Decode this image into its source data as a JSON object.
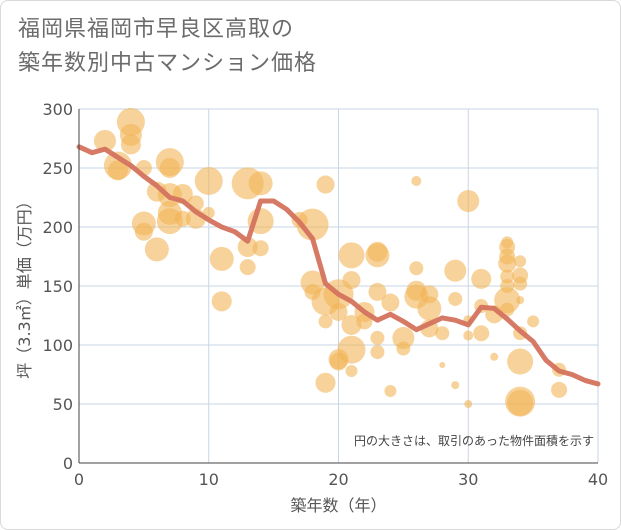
{
  "chart_data": {
    "type": "scatter",
    "title_lines": [
      "福岡県福岡市早良区高取の",
      "築年数別中古マンション価格"
    ],
    "xlabel": "築年数（年）",
    "ylabel": "坪（3.3㎡）単価（万円）",
    "xlim": [
      0,
      40
    ],
    "ylim": [
      0,
      300
    ],
    "xticks": [
      0,
      10,
      20,
      30,
      40
    ],
    "yticks": [
      0,
      50,
      100,
      150,
      200,
      250,
      300
    ],
    "grid": true,
    "annotation": "円の大きさは、取引のあった物件面積を示す",
    "colors": {
      "bubble": "#f2b457",
      "line": "#d4735e",
      "grid": "#c9d6e3"
    },
    "series": [
      {
        "kind": "bubbles",
        "points": [
          {
            "x": 2,
            "y": 273,
            "s": 11
          },
          {
            "x": 3,
            "y": 252,
            "s": 14
          },
          {
            "x": 3,
            "y": 248,
            "s": 10
          },
          {
            "x": 4,
            "y": 289,
            "s": 14
          },
          {
            "x": 4,
            "y": 278,
            "s": 11
          },
          {
            "x": 4,
            "y": 270,
            "s": 10
          },
          {
            "x": 5,
            "y": 250,
            "s": 8
          },
          {
            "x": 5,
            "y": 203,
            "s": 12
          },
          {
            "x": 5,
            "y": 196,
            "s": 9
          },
          {
            "x": 6,
            "y": 230,
            "s": 10
          },
          {
            "x": 6,
            "y": 181,
            "s": 12
          },
          {
            "x": 7,
            "y": 255,
            "s": 14
          },
          {
            "x": 7,
            "y": 250,
            "s": 10
          },
          {
            "x": 7,
            "y": 227,
            "s": 12
          },
          {
            "x": 7,
            "y": 212,
            "s": 12
          },
          {
            "x": 7,
            "y": 205,
            "s": 13
          },
          {
            "x": 8,
            "y": 228,
            "s": 10
          },
          {
            "x": 8,
            "y": 207,
            "s": 8
          },
          {
            "x": 9,
            "y": 220,
            "s": 8
          },
          {
            "x": 9,
            "y": 207,
            "s": 10
          },
          {
            "x": 10,
            "y": 239,
            "s": 14
          },
          {
            "x": 10,
            "y": 212,
            "s": 6
          },
          {
            "x": 11,
            "y": 173,
            "s": 12
          },
          {
            "x": 11,
            "y": 137,
            "s": 10
          },
          {
            "x": 13,
            "y": 237,
            "s": 16
          },
          {
            "x": 13,
            "y": 183,
            "s": 10
          },
          {
            "x": 13,
            "y": 166,
            "s": 8
          },
          {
            "x": 14,
            "y": 237,
            "s": 12
          },
          {
            "x": 14,
            "y": 205,
            "s": 13
          },
          {
            "x": 14,
            "y": 182,
            "s": 8
          },
          {
            "x": 17,
            "y": 206,
            "s": 8
          },
          {
            "x": 18,
            "y": 202,
            "s": 16
          },
          {
            "x": 18,
            "y": 153,
            "s": 12
          },
          {
            "x": 18,
            "y": 145,
            "s": 8
          },
          {
            "x": 19,
            "y": 236,
            "s": 9
          },
          {
            "x": 19,
            "y": 137,
            "s": 14
          },
          {
            "x": 19,
            "y": 120,
            "s": 7
          },
          {
            "x": 19,
            "y": 68,
            "s": 10
          },
          {
            "x": 20,
            "y": 143,
            "s": 15
          },
          {
            "x": 20,
            "y": 128,
            "s": 9
          },
          {
            "x": 20,
            "y": 88,
            "s": 10
          },
          {
            "x": 20,
            "y": 86,
            "s": 9
          },
          {
            "x": 21,
            "y": 176,
            "s": 13
          },
          {
            "x": 21,
            "y": 155,
            "s": 9
          },
          {
            "x": 21,
            "y": 117,
            "s": 10
          },
          {
            "x": 21,
            "y": 96,
            "s": 14
          },
          {
            "x": 21,
            "y": 78,
            "s": 6
          },
          {
            "x": 22,
            "y": 128,
            "s": 10
          },
          {
            "x": 22,
            "y": 120,
            "s": 8
          },
          {
            "x": 23,
            "y": 179,
            "s": 10
          },
          {
            "x": 23,
            "y": 176,
            "s": 12
          },
          {
            "x": 23,
            "y": 145,
            "s": 9
          },
          {
            "x": 23,
            "y": 106,
            "s": 7
          },
          {
            "x": 23,
            "y": 94,
            "s": 7
          },
          {
            "x": 24,
            "y": 136,
            "s": 9
          },
          {
            "x": 24,
            "y": 61,
            "s": 6
          },
          {
            "x": 25,
            "y": 106,
            "s": 11
          },
          {
            "x": 25,
            "y": 97,
            "s": 7
          },
          {
            "x": 26,
            "y": 239,
            "s": 5
          },
          {
            "x": 26,
            "y": 165,
            "s": 7
          },
          {
            "x": 26,
            "y": 146,
            "s": 10
          },
          {
            "x": 26,
            "y": 141,
            "s": 12
          },
          {
            "x": 27,
            "y": 143,
            "s": 9
          },
          {
            "x": 27,
            "y": 131,
            "s": 12
          },
          {
            "x": 27,
            "y": 114,
            "s": 9
          },
          {
            "x": 28,
            "y": 110,
            "s": 7
          },
          {
            "x": 28,
            "y": 83,
            "s": 3
          },
          {
            "x": 29,
            "y": 163,
            "s": 11
          },
          {
            "x": 29,
            "y": 139,
            "s": 7
          },
          {
            "x": 29,
            "y": 66,
            "s": 4
          },
          {
            "x": 30,
            "y": 222,
            "s": 11
          },
          {
            "x": 30,
            "y": 121,
            "s": 5
          },
          {
            "x": 30,
            "y": 108,
            "s": 5
          },
          {
            "x": 30,
            "y": 50,
            "s": 4
          },
          {
            "x": 31,
            "y": 156,
            "s": 10
          },
          {
            "x": 31,
            "y": 133,
            "s": 7
          },
          {
            "x": 31,
            "y": 110,
            "s": 8
          },
          {
            "x": 32,
            "y": 126,
            "s": 9
          },
          {
            "x": 32,
            "y": 90,
            "s": 4
          },
          {
            "x": 33,
            "y": 187,
            "s": 6
          },
          {
            "x": 33,
            "y": 183,
            "s": 8
          },
          {
            "x": 33,
            "y": 175,
            "s": 8
          },
          {
            "x": 33,
            "y": 169,
            "s": 9
          },
          {
            "x": 33,
            "y": 158,
            "s": 7
          },
          {
            "x": 33,
            "y": 150,
            "s": 7
          },
          {
            "x": 33,
            "y": 138,
            "s": 13
          },
          {
            "x": 33,
            "y": 130,
            "s": 7
          },
          {
            "x": 34,
            "y": 171,
            "s": 6
          },
          {
            "x": 34,
            "y": 159,
            "s": 8
          },
          {
            "x": 34,
            "y": 152,
            "s": 7
          },
          {
            "x": 34,
            "y": 138,
            "s": 4
          },
          {
            "x": 34,
            "y": 110,
            "s": 7
          },
          {
            "x": 34,
            "y": 86,
            "s": 13
          },
          {
            "x": 34,
            "y": 52,
            "s": 15
          },
          {
            "x": 34,
            "y": 51,
            "s": 13
          },
          {
            "x": 35,
            "y": 120,
            "s": 6
          },
          {
            "x": 37,
            "y": 79,
            "s": 7
          },
          {
            "x": 37,
            "y": 62,
            "s": 8
          }
        ]
      },
      {
        "kind": "trend-line",
        "x": [
          0,
          1,
          2,
          3,
          4,
          5,
          6,
          7,
          8,
          9,
          10,
          11,
          12,
          13,
          14,
          15,
          16,
          17,
          18,
          19,
          20,
          21,
          22,
          23,
          24,
          25,
          26,
          27,
          28,
          29,
          30,
          31,
          32,
          33,
          34,
          35,
          36,
          37,
          38,
          39,
          40
        ],
        "y": [
          268,
          263,
          266,
          259,
          252,
          243,
          235,
          225,
          222,
          213,
          206,
          200,
          196,
          188,
          222,
          222,
          215,
          204,
          190,
          152,
          143,
          137,
          128,
          121,
          126,
          120,
          113,
          118,
          123,
          121,
          117,
          132,
          131,
          122,
          112,
          103,
          87,
          78,
          75,
          70,
          67
        ]
      }
    ]
  }
}
